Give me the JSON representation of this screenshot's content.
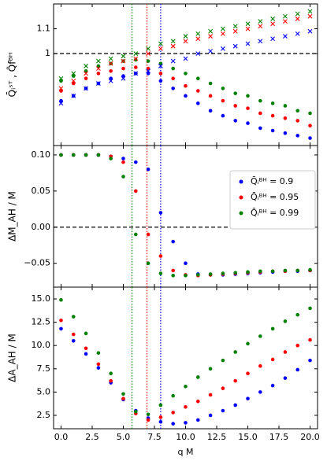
{
  "chart_data": [
    {
      "type": "scatter",
      "ylabel": "Q̄ᵢˢᵀ ,  Q̃fᴮᴴ",
      "x": [
        0,
        1,
        2,
        3,
        4,
        5,
        6,
        7,
        8,
        9,
        10,
        11,
        12,
        13,
        14,
        15,
        16,
        17,
        18,
        19,
        20
      ],
      "xlim": [
        -0.6,
        20.6
      ],
      "xticks": [
        0,
        2.5,
        5,
        7.5,
        10,
        12.5,
        15,
        17.5,
        20
      ],
      "ylim": [
        0.63,
        1.2
      ],
      "yticks": [
        1.0,
        1.1
      ],
      "hline": 1.0,
      "vlines": [
        {
          "value": 5.7,
          "color": "#008000"
        },
        {
          "value": 6.9,
          "color": "#ff0000"
        },
        {
          "value": 8.0,
          "color": "#0000ff"
        }
      ],
      "series": [
        {
          "color": "#0000ff",
          "marker": "o",
          "values": [
            0.81,
            0.83,
            0.86,
            0.88,
            0.9,
            0.91,
            0.92,
            0.92,
            0.89,
            0.86,
            0.83,
            0.8,
            0.77,
            0.75,
            0.73,
            0.72,
            0.7,
            0.69,
            0.68,
            0.67,
            0.66
          ]
        },
        {
          "color": "#ff0000",
          "marker": "o",
          "values": [
            0.85,
            0.88,
            0.9,
            0.92,
            0.93,
            0.94,
            0.945,
            0.94,
            0.92,
            0.9,
            0.87,
            0.85,
            0.83,
            0.81,
            0.79,
            0.78,
            0.76,
            0.75,
            0.74,
            0.73,
            0.71
          ]
        },
        {
          "color": "#008000",
          "marker": "o",
          "values": [
            0.89,
            0.91,
            0.93,
            0.95,
            0.96,
            0.97,
            0.975,
            0.97,
            0.96,
            0.94,
            0.92,
            0.9,
            0.88,
            0.86,
            0.84,
            0.83,
            0.81,
            0.8,
            0.79,
            0.77,
            0.76
          ]
        },
        {
          "color": "#0000ff",
          "marker": "x",
          "values": [
            0.8,
            0.83,
            0.86,
            0.88,
            0.89,
            0.9,
            0.92,
            0.93,
            0.95,
            0.97,
            0.98,
            1.0,
            1.01,
            1.02,
            1.03,
            1.04,
            1.05,
            1.06,
            1.07,
            1.08,
            1.09
          ]
        },
        {
          "color": "#ff0000",
          "marker": "x",
          "values": [
            0.86,
            0.89,
            0.92,
            0.94,
            0.96,
            0.97,
            0.98,
            1.0,
            1.02,
            1.03,
            1.05,
            1.06,
            1.07,
            1.08,
            1.09,
            1.1,
            1.11,
            1.12,
            1.13,
            1.14,
            1.15
          ]
        },
        {
          "color": "#008000",
          "marker": "x",
          "values": [
            0.9,
            0.92,
            0.95,
            0.97,
            0.98,
            0.99,
            1.0,
            1.02,
            1.04,
            1.05,
            1.07,
            1.08,
            1.09,
            1.1,
            1.11,
            1.12,
            1.13,
            1.14,
            1.15,
            1.16,
            1.17
          ]
        }
      ]
    },
    {
      "type": "scatter",
      "ylabel": "ΔM_AH / M",
      "legend": "upper right",
      "x": [
        0,
        1,
        2,
        3,
        4,
        5,
        6,
        7,
        8,
        9,
        10,
        11,
        12,
        13,
        14,
        15,
        16,
        17,
        18,
        19,
        20
      ],
      "xlim": [
        -0.6,
        20.6
      ],
      "xticks": [
        0,
        2.5,
        5,
        7.5,
        10,
        12.5,
        15,
        17.5,
        20
      ],
      "ylim": [
        -0.083,
        0.113
      ],
      "yticks": [
        {
          "value": 0.1,
          "label": "0.10"
        },
        0.05,
        {
          "value": 0,
          "label": "0.00"
        },
        {
          "value": -0.05,
          "label": "−0.05"
        }
      ],
      "hline": 0,
      "vlines": [
        {
          "value": 5.7,
          "color": "#008000"
        },
        {
          "value": 6.9,
          "color": "#ff0000"
        },
        {
          "value": 8.0,
          "color": "#0000ff"
        }
      ],
      "series": [
        {
          "name": "Q̄ᵢᴮᴴ = 0.9",
          "color": "#0000ff",
          "marker": "o",
          "values": [
            0.1,
            0.1,
            0.1,
            0.1,
            0.098,
            0.095,
            0.09,
            0.08,
            0.02,
            -0.02,
            -0.05,
            -0.065,
            -0.066,
            -0.066,
            -0.065,
            -0.064,
            -0.063,
            -0.062,
            -0.061,
            -0.061,
            -0.06
          ]
        },
        {
          "name": "Q̄ᵢᴮᴴ = 0.95",
          "color": "#ff0000",
          "marker": "o",
          "values": [
            0.1,
            0.1,
            0.1,
            0.1,
            0.098,
            0.09,
            0.05,
            -0.01,
            -0.04,
            -0.06,
            -0.066,
            -0.067,
            -0.066,
            -0.065,
            -0.064,
            -0.063,
            -0.062,
            -0.061,
            -0.061,
            -0.06,
            -0.06
          ]
        },
        {
          "name": "Q̄ᵢᴮᴴ = 0.99",
          "color": "#008000",
          "marker": "o",
          "values": [
            0.1,
            0.1,
            0.1,
            0.1,
            0.095,
            0.07,
            -0.01,
            -0.05,
            -0.064,
            -0.067,
            -0.067,
            -0.066,
            -0.065,
            -0.064,
            -0.063,
            -0.062,
            -0.061,
            -0.061,
            -0.06,
            -0.06,
            -0.059
          ]
        }
      ]
    },
    {
      "type": "scatter",
      "ylabel": "ΔA_AH / M",
      "xlabel": "q M",
      "x": [
        0,
        1,
        2,
        3,
        4,
        5,
        6,
        7,
        8,
        9,
        10,
        11,
        12,
        13,
        14,
        15,
        16,
        17,
        18,
        19,
        20
      ],
      "xlim": [
        -0.6,
        20.6
      ],
      "xticks": [
        {
          "value": 0,
          "label": "0.0"
        },
        2.5,
        {
          "value": 5,
          "label": "5.0"
        },
        7.5,
        {
          "value": 10,
          "label": "10.0"
        },
        12.5,
        {
          "value": 15,
          "label": "15.0"
        },
        17.5,
        {
          "value": 20,
          "label": "20.0"
        }
      ],
      "ylim": [
        1.06,
        16.27
      ],
      "yticks": [
        2.5,
        {
          "value": 5,
          "label": "5.0"
        },
        7.5,
        {
          "value": 10,
          "label": "10.0"
        },
        12.5,
        {
          "value": 15,
          "label": "15.0"
        }
      ],
      "vlines": [
        {
          "value": 5.7,
          "color": "#008000"
        },
        {
          "value": 6.9,
          "color": "#ff0000"
        },
        {
          "value": 8.0,
          "color": "#0000ff"
        }
      ],
      "series": [
        {
          "color": "#0000ff",
          "marker": "o",
          "values": [
            11.8,
            10.5,
            9.1,
            7.6,
            6.0,
            4.2,
            3.0,
            2.2,
            1.8,
            1.6,
            1.7,
            2.0,
            2.5,
            3.0,
            3.6,
            4.3,
            5.0,
            5.7,
            6.5,
            7.4,
            8.4
          ]
        },
        {
          "color": "#ff0000",
          "marker": "o",
          "values": [
            12.7,
            11.2,
            9.7,
            8.0,
            6.2,
            4.3,
            2.7,
            2.0,
            2.3,
            2.8,
            3.4,
            4.0,
            4.7,
            5.4,
            6.2,
            7.0,
            7.8,
            8.5,
            9.3,
            10.0,
            10.6
          ]
        },
        {
          "color": "#008000",
          "marker": "o",
          "values": [
            14.9,
            13.1,
            11.3,
            9.2,
            7.0,
            4.8,
            2.9,
            2.6,
            3.6,
            4.6,
            5.6,
            6.6,
            7.5,
            8.4,
            9.3,
            10.2,
            11.0,
            11.8,
            12.6,
            13.3,
            14.0
          ]
        }
      ]
    }
  ]
}
